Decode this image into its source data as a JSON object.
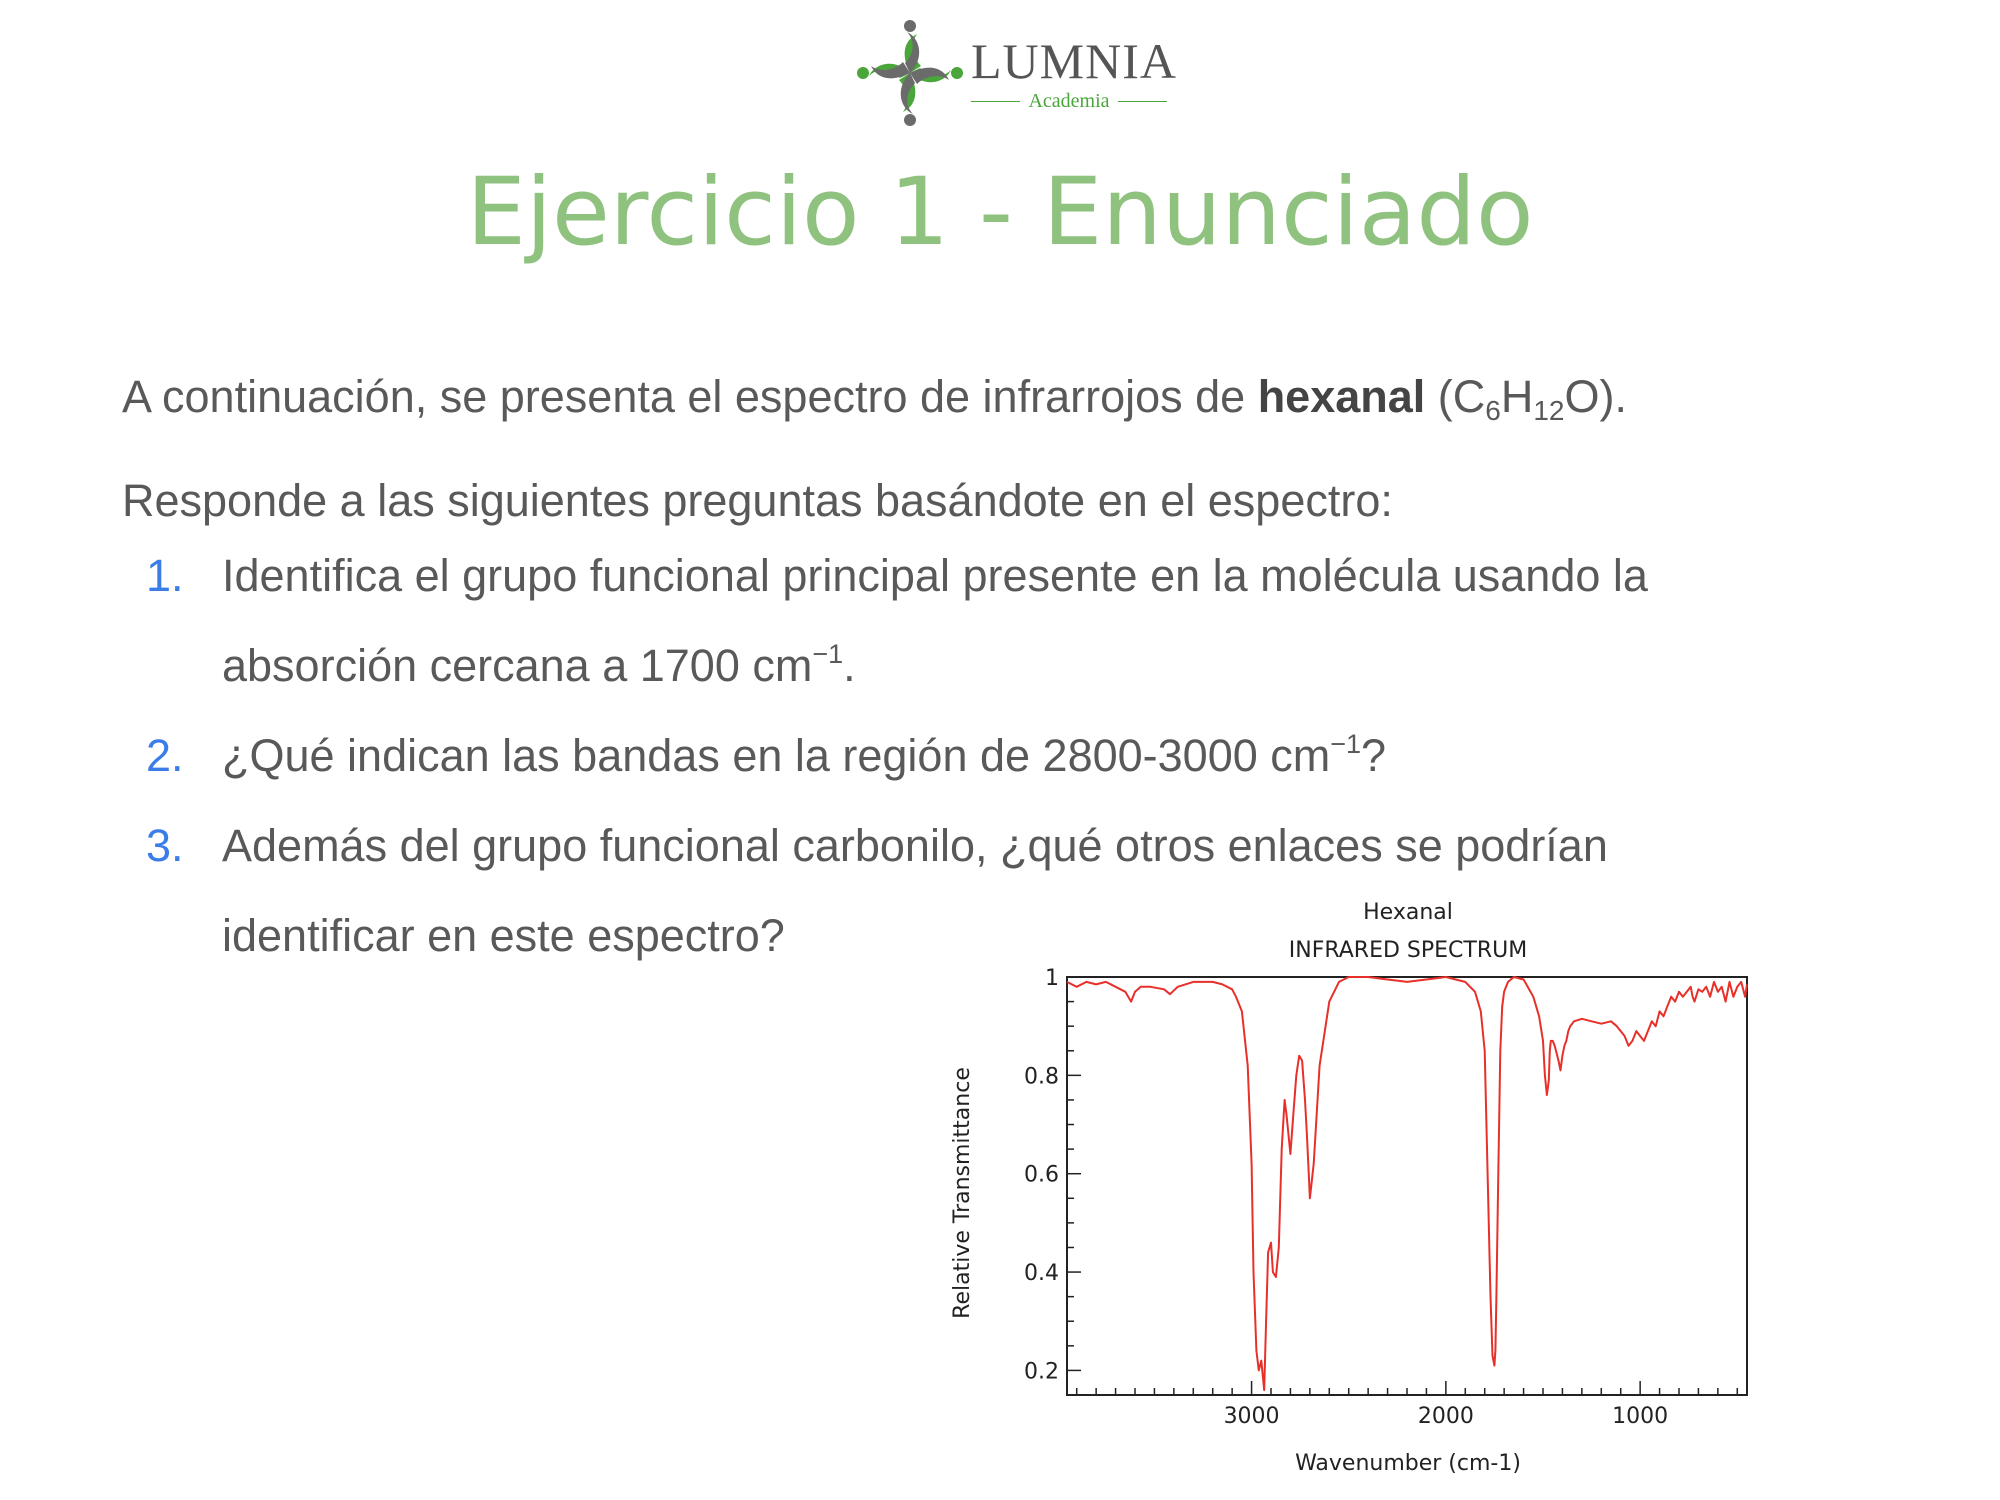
{
  "logo": {
    "name": "LUMNIA",
    "subtitle": "Academia",
    "colors": {
      "green": "#4aa63a",
      "gray": "#6b6b6b"
    }
  },
  "title": "Ejercicio 1 - Enunciado",
  "intro": {
    "line1_prefix": "A continuación, se presenta el espectro de infrarrojos de ",
    "compound": "hexanal",
    "formula_open": " (C",
    "formula_sub1": "6",
    "formula_mid": "H",
    "formula_sub2": "12",
    "formula_close": "O).",
    "line2": "Responde a las siguientes preguntas basándote en el espectro:"
  },
  "questions": [
    {
      "number": "1.",
      "text": "Identifica el grupo funcional principal presente en la molécula usando la absorción cercana a 1700 cm",
      "sup": "−1",
      "suffix": "."
    },
    {
      "number": "2.",
      "text": "¿Qué indican las bandas en la región de 2800-3000 cm",
      "sup": "−1",
      "suffix": "?"
    },
    {
      "number": "3.",
      "text": "Además del grupo funcional carbonilo, ¿qué otros enlaces se podrían identificar en este espectro?",
      "sup": "",
      "suffix": ""
    }
  ],
  "chart_data": {
    "type": "line",
    "title": "Hexanal",
    "subtitle": "INFRARED SPECTRUM",
    "xlabel": "Wavenumber (cm-1)",
    "ylabel": "Relative Transmittance",
    "xlim": [
      3950,
      450
    ],
    "ylim": [
      0.15,
      1.0
    ],
    "xticks": [
      3000,
      2000,
      1000
    ],
    "yticks": [
      0.2,
      0.4,
      0.6,
      0.8,
      1
    ],
    "grid": false,
    "line_color": "#e8302a",
    "series": [
      {
        "x": [
          3950,
          3900,
          3850,
          3800,
          3750,
          3700,
          3650,
          3620,
          3600,
          3570,
          3520,
          3450,
          3420,
          3380,
          3300,
          3200,
          3150,
          3100,
          3080,
          3050,
          3020,
          3000,
          2990,
          2975,
          2963,
          2950,
          2935,
          2925,
          2915,
          2900,
          2890,
          2875,
          2860,
          2845,
          2830,
          2820,
          2800,
          2785,
          2770,
          2755,
          2740,
          2725,
          2715,
          2700,
          2680,
          2650,
          2600,
          2550,
          2500,
          2400,
          2300,
          2200,
          2100,
          2000,
          1950,
          1900,
          1850,
          1820,
          1800,
          1785,
          1770,
          1760,
          1750,
          1745,
          1740,
          1730,
          1720,
          1710,
          1700,
          1680,
          1650,
          1600,
          1550,
          1520,
          1500,
          1490,
          1480,
          1470,
          1465,
          1460,
          1450,
          1440,
          1420,
          1410,
          1400,
          1390,
          1380,
          1370,
          1360,
          1340,
          1300,
          1250,
          1200,
          1150,
          1120,
          1100,
          1080,
          1060,
          1040,
          1020,
          1000,
          980,
          960,
          940,
          920,
          900,
          880,
          860,
          840,
          820,
          800,
          780,
          760,
          740,
          730,
          720,
          700,
          680,
          660,
          640,
          620,
          600,
          580,
          560,
          540,
          520,
          500,
          480,
          460,
          450
        ],
        "y": [
          0.99,
          0.98,
          0.99,
          0.985,
          0.99,
          0.98,
          0.97,
          0.95,
          0.97,
          0.98,
          0.98,
          0.975,
          0.965,
          0.98,
          0.99,
          0.99,
          0.985,
          0.975,
          0.96,
          0.93,
          0.82,
          0.62,
          0.4,
          0.24,
          0.2,
          0.22,
          0.16,
          0.3,
          0.44,
          0.46,
          0.4,
          0.39,
          0.45,
          0.65,
          0.75,
          0.72,
          0.64,
          0.72,
          0.8,
          0.84,
          0.83,
          0.75,
          0.68,
          0.55,
          0.62,
          0.82,
          0.95,
          0.99,
          1.0,
          1.0,
          0.995,
          0.99,
          0.995,
          1.0,
          0.995,
          0.99,
          0.97,
          0.93,
          0.85,
          0.6,
          0.35,
          0.23,
          0.21,
          0.24,
          0.35,
          0.6,
          0.85,
          0.94,
          0.97,
          0.99,
          1.0,
          0.995,
          0.96,
          0.92,
          0.87,
          0.8,
          0.76,
          0.79,
          0.85,
          0.87,
          0.87,
          0.86,
          0.83,
          0.81,
          0.84,
          0.86,
          0.87,
          0.89,
          0.9,
          0.91,
          0.915,
          0.91,
          0.905,
          0.91,
          0.9,
          0.89,
          0.88,
          0.86,
          0.87,
          0.89,
          0.88,
          0.87,
          0.89,
          0.91,
          0.9,
          0.93,
          0.92,
          0.94,
          0.96,
          0.95,
          0.97,
          0.96,
          0.97,
          0.98,
          0.96,
          0.95,
          0.975,
          0.97,
          0.98,
          0.96,
          0.99,
          0.97,
          0.98,
          0.95,
          0.99,
          0.96,
          0.98,
          0.99,
          0.96,
          0.985
        ]
      }
    ]
  }
}
